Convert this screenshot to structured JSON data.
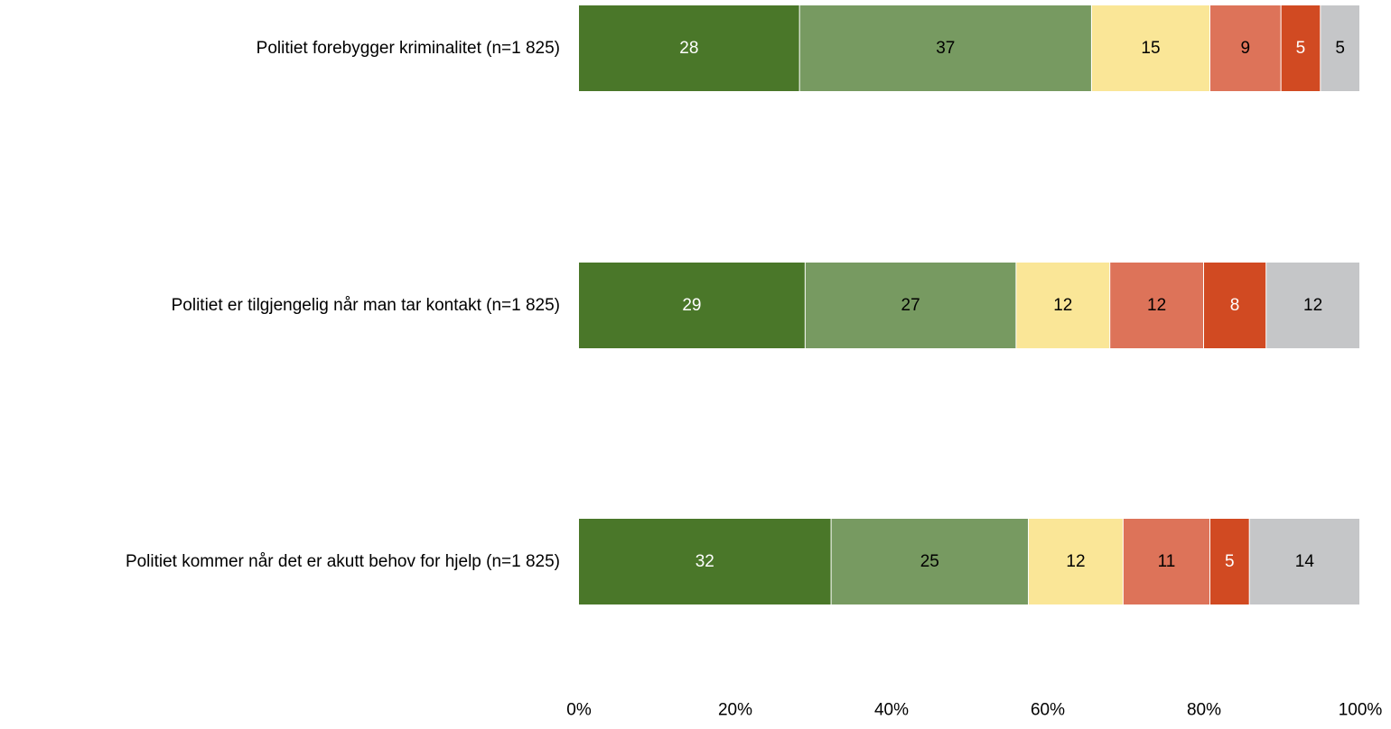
{
  "chart_data": {
    "type": "bar",
    "orientation": "horizontal",
    "stacked": true,
    "percent_stacked": true,
    "categories": [
      "Politiet forebygger kriminalitet (n=1 825)",
      "Politiet er tilgjengelig når man tar kontakt (n=1 825)",
      "Politiet kommer når det er akutt behov for hjelp (n=1 825)"
    ],
    "series": [
      {
        "color": "#4a7729",
        "label_color": "#ffffff",
        "values": [
          28,
          29,
          32
        ]
      },
      {
        "color": "#779a61",
        "label_color": "#000000",
        "values": [
          37,
          27,
          25
        ]
      },
      {
        "color": "#fae697",
        "label_color": "#000000",
        "values": [
          15,
          12,
          12
        ]
      },
      {
        "color": "#dd7359",
        "label_color": "#000000",
        "values": [
          9,
          12,
          11
        ]
      },
      {
        "color": "#d14a22",
        "label_color": "#ffffff",
        "values": [
          5,
          8,
          5
        ]
      },
      {
        "color": "#c5c6c8",
        "label_color": "#000000",
        "values": [
          5,
          12,
          14
        ]
      }
    ],
    "x_ticks": [
      "0%",
      "20%",
      "40%",
      "60%",
      "80%",
      "100%"
    ],
    "xlim": [
      0,
      100
    ],
    "grid": false,
    "legend": "none"
  }
}
